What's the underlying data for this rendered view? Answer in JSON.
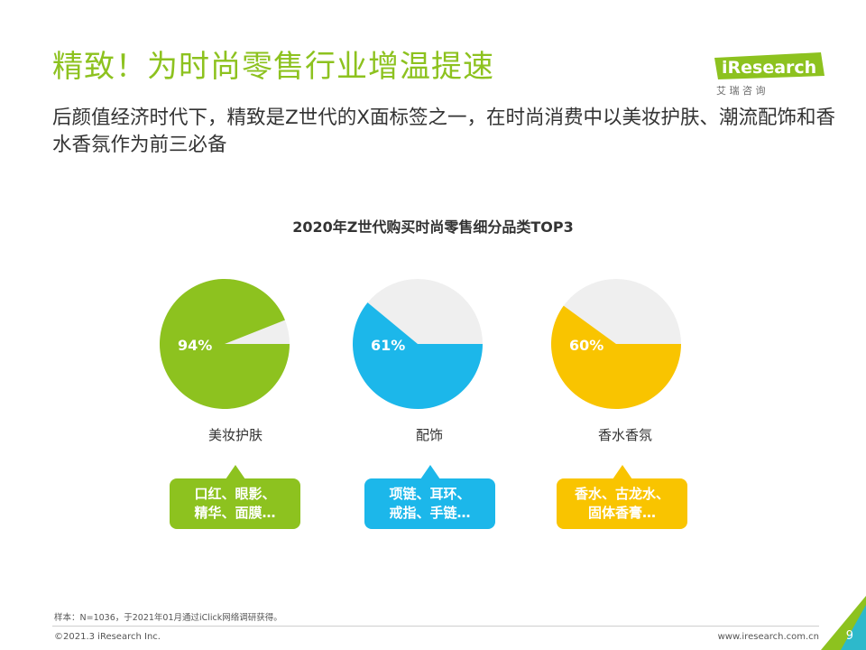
{
  "header": {
    "title": "精致！为时尚零售行业增温提速",
    "subtitle": "后颜值经济时代下，精致是Z世代的X面标签之一，在时尚消费中以美妆护肤、潮流配饰和香水香氛作为前三必备"
  },
  "logo": {
    "brand": "iResearch",
    "cn": "艾 瑞 咨 询"
  },
  "chart_data": {
    "type": "pie",
    "title": "2020年Z世代购买时尚零售细分品类TOP3",
    "categories": [
      "美妆护肤",
      "配饰",
      "香水香氛"
    ],
    "values": [
      94,
      61,
      60
    ],
    "value_labels": [
      "94%",
      "61%",
      "60%"
    ],
    "colors": [
      "#8dc21f",
      "#1cb7ea",
      "#f9c400"
    ],
    "remainder_color": "#efefef"
  },
  "bubbles": [
    {
      "line1": "口红、眼影、",
      "line2": "精华、面膜…"
    },
    {
      "line1": "项链、耳环、",
      "line2": "戒指、手链…"
    },
    {
      "line1": "香水、古龙水、",
      "line2": "固体香膏…"
    }
  ],
  "footer": {
    "note": "样本：N=1036，于2021年01月通过iClick网络调研获得。",
    "copyright": "©2021.3 iResearch Inc.",
    "website": "www.iresearch.com.cn",
    "page": "9"
  }
}
